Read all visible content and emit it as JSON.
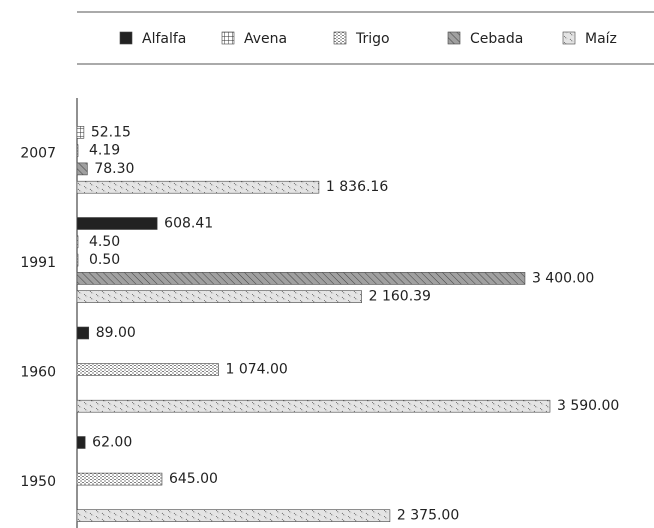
{
  "chart_data": {
    "type": "bar",
    "orientation": "horizontal",
    "categories": [
      "2007",
      "1991",
      "1960",
      "1950"
    ],
    "xlim": [
      0,
      4000
    ],
    "legend": "top",
    "series": [
      {
        "name": "Alfalfa",
        "color": "#222222",
        "values": [
          null,
          608.41,
          89,
          62
        ],
        "value_labels": [
          null,
          "608.41",
          "89.00",
          "62.00"
        ]
      },
      {
        "name": "Avena",
        "color": "#ffffff",
        "values": [
          52.15,
          4.5,
          null,
          null
        ],
        "value_labels": [
          "52.15",
          "4.50",
          null,
          null
        ]
      },
      {
        "name": "Trigo",
        "color": "#ffffff",
        "values": [
          4.19,
          0.5,
          1074,
          645
        ],
        "value_labels": [
          "4.19",
          "0.50",
          "1 074.00",
          "645.00"
        ]
      },
      {
        "name": "Cebada",
        "color": "#a0a0a0",
        "values": [
          78.3,
          3400,
          null,
          null
        ],
        "value_labels": [
          "78.30",
          "3 400.00",
          null,
          null
        ]
      },
      {
        "name": "Maíz",
        "color": "#e4e4e4",
        "values": [
          1836.16,
          2160.39,
          3590,
          2375
        ],
        "value_labels": [
          "1 836.16",
          "2 160.39",
          "3 590.00",
          "2 375.00"
        ]
      }
    ]
  }
}
